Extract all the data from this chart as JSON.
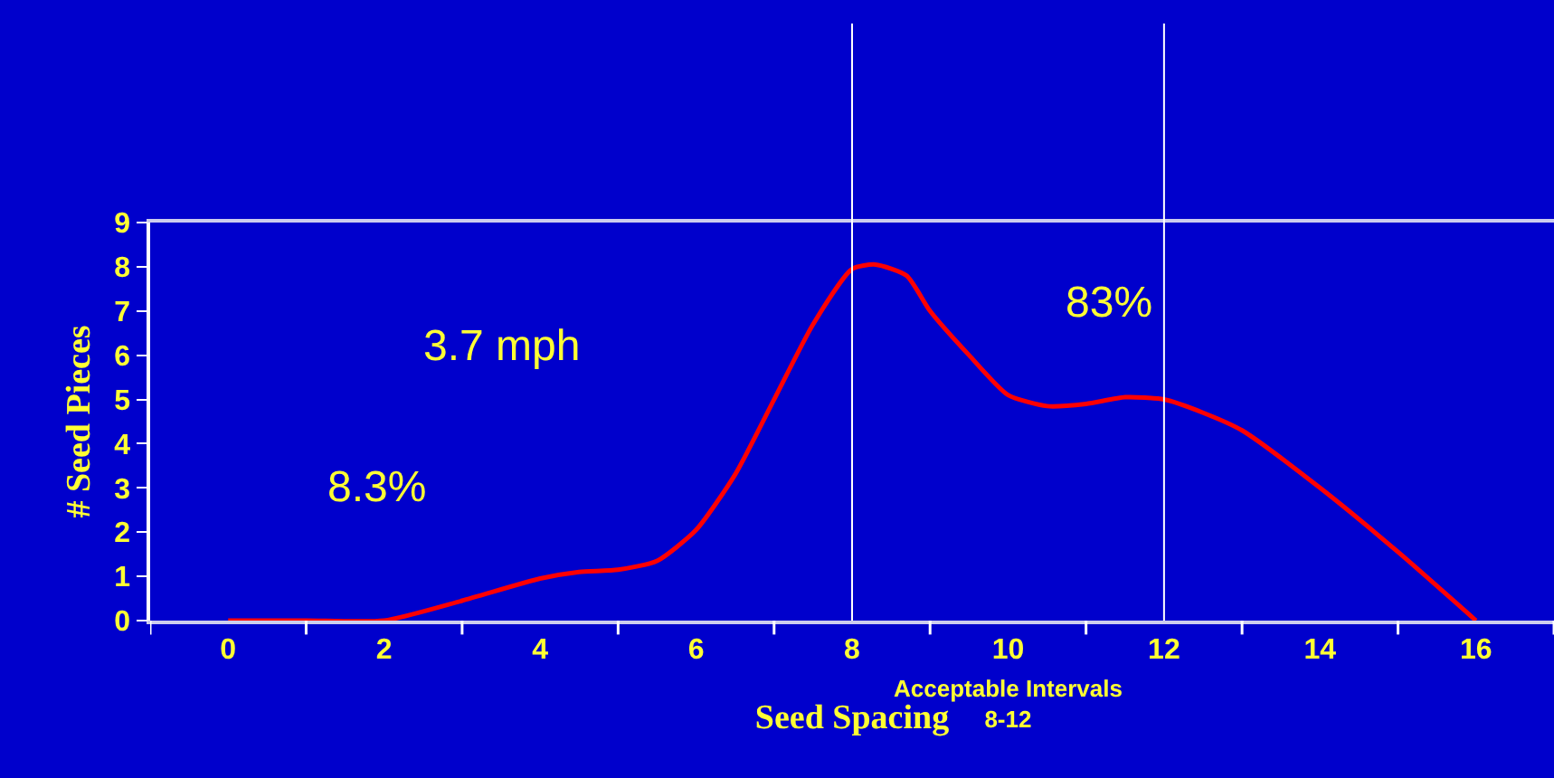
{
  "chart_data": {
    "type": "line",
    "xlabel": "Seed Spacing",
    "ylabel": "# Seed Pieces",
    "x": [
      0,
      1,
      2,
      3,
      4,
      4.5,
      5,
      5.5,
      6,
      6.5,
      7,
      7.5,
      8,
      8.3,
      8.7,
      9,
      9.5,
      10,
      10.5,
      11,
      11.5,
      12,
      12.5,
      13,
      14,
      15,
      16
    ],
    "series": [
      {
        "color": "#ff0000",
        "values": [
          0,
          0,
          0,
          0.45,
          0.95,
          1.1,
          1.15,
          1.35,
          2.05,
          3.3,
          5.0,
          6.7,
          7.95,
          8.05,
          7.8,
          7.0,
          6.0,
          5.1,
          4.85,
          4.9,
          5.05,
          5.0,
          4.7,
          4.3,
          3.0,
          1.55,
          0
        ]
      }
    ],
    "xlim": [
      -1,
      17
    ],
    "xticks": [
      {
        "value": -1,
        "label": null
      },
      0,
      {
        "value": 1,
        "label": null
      },
      2,
      {
        "value": 3,
        "label": null
      },
      4,
      {
        "value": 5,
        "label": null
      },
      6,
      {
        "value": 7,
        "label": null
      },
      8,
      {
        "value": 9,
        "label": null
      },
      10,
      {
        "value": 11,
        "label": null
      },
      12,
      {
        "value": 13,
        "label": null
      },
      14,
      {
        "value": 15,
        "label": null
      },
      16,
      {
        "value": 17,
        "label": null
      }
    ],
    "ylim": [
      0,
      9
    ],
    "yticks": [
      0,
      1,
      2,
      3,
      4,
      5,
      6,
      7,
      8,
      9
    ],
    "ref_lines": [
      {
        "axis": "x",
        "value": 8,
        "color": "#ffffff"
      },
      {
        "axis": "x",
        "value": 12,
        "color": "#ffffff"
      }
    ],
    "annotations": [
      "3.7 mph",
      "8.3%",
      "83%",
      "Acceptable Intervals\n8-12"
    ],
    "grid": false,
    "marker": "none",
    "line_style": "solid"
  }
}
